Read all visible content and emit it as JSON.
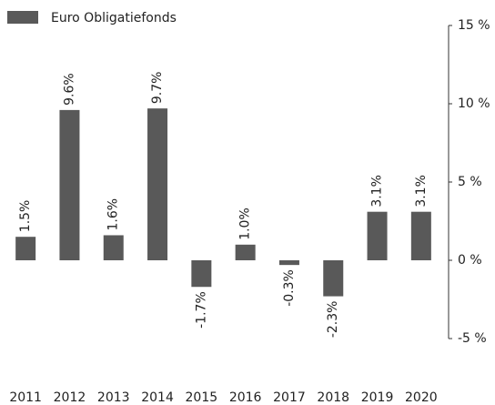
{
  "chart_data": {
    "type": "bar",
    "legend": "Euro Obligatiefonds",
    "categories": [
      "2011",
      "2012",
      "2013",
      "2014",
      "2015",
      "2016",
      "2017",
      "2018",
      "2019",
      "2020"
    ],
    "values": [
      1.5,
      9.6,
      1.6,
      9.7,
      -1.7,
      1.0,
      -0.3,
      -2.3,
      3.1,
      3.1
    ],
    "value_labels": [
      "1.5%",
      "9.6%",
      "1.6%",
      "9.7%",
      "-1.7%",
      "1.0%",
      "-0.3%",
      "-2.3%",
      "3.1%",
      "3.1%"
    ],
    "color": "#595959",
    "ylim": [
      -5,
      15
    ],
    "yticks": [
      {
        "value": -5,
        "label": "-5 %"
      },
      {
        "value": 0,
        "label": "0 %"
      },
      {
        "value": 5,
        "label": "5 %"
      },
      {
        "value": 10,
        "label": "10 %"
      },
      {
        "value": 15,
        "label": "15 %"
      }
    ],
    "y_axis_side": "right"
  }
}
